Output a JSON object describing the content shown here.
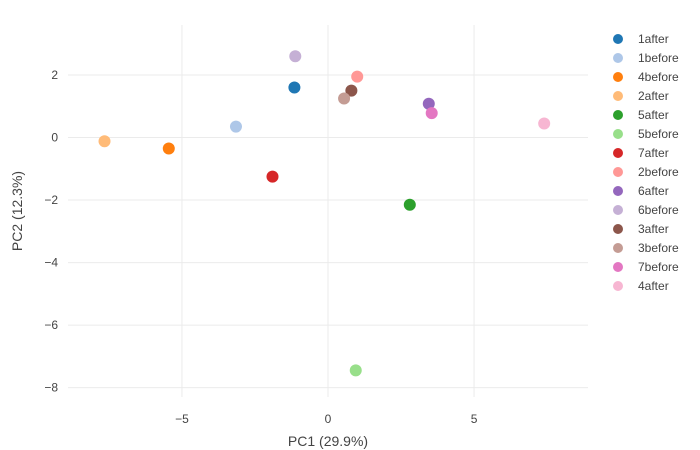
{
  "chart_data": {
    "type": "scatter",
    "xlabel": "PC1 (29.9%)",
    "ylabel": "PC2 (12.3%)",
    "xlim": [
      -8.9,
      8.9
    ],
    "ylim": [
      -8.3,
      3.6
    ],
    "x_ticks": [
      -5,
      0,
      5
    ],
    "y_ticks": [
      2,
      0,
      -2,
      -4,
      -6,
      -8
    ],
    "x_tick_labels": [
      "−5",
      "0",
      "5"
    ],
    "y_tick_labels": [
      "2",
      "0",
      "−2",
      "−4",
      "−6",
      "−8"
    ],
    "grid": true,
    "legend_position": "right",
    "series": [
      {
        "name": "1after",
        "color": "#1f77b4",
        "x": -1.15,
        "y": 1.6
      },
      {
        "name": "1before",
        "color": "#aec7e8",
        "x": -3.15,
        "y": 0.35
      },
      {
        "name": "4before",
        "color": "#ff7f0e",
        "x": -5.45,
        "y": -0.35
      },
      {
        "name": "2after",
        "color": "#ffbb78",
        "x": -7.65,
        "y": -0.12
      },
      {
        "name": "5after",
        "color": "#2ca02c",
        "x": 2.8,
        "y": -2.15
      },
      {
        "name": "5before",
        "color": "#98df8a",
        "x": 0.95,
        "y": -7.45
      },
      {
        "name": "7after",
        "color": "#d62728",
        "x": -1.9,
        "y": -1.25
      },
      {
        "name": "2before",
        "color": "#ff9896",
        "x": 1.0,
        "y": 1.95
      },
      {
        "name": "6after",
        "color": "#9467bd",
        "x": 3.45,
        "y": 1.08
      },
      {
        "name": "6before",
        "color": "#c5b0d5",
        "x": -1.12,
        "y": 2.6
      },
      {
        "name": "3after",
        "color": "#8c564b",
        "x": 0.8,
        "y": 1.5
      },
      {
        "name": "3before",
        "color": "#c49c94",
        "x": 0.55,
        "y": 1.25
      },
      {
        "name": "7before",
        "color": "#e377c2",
        "x": 3.55,
        "y": 0.78
      },
      {
        "name": "4after",
        "color": "#f7b6d2",
        "x": 7.4,
        "y": 0.45
      }
    ]
  }
}
